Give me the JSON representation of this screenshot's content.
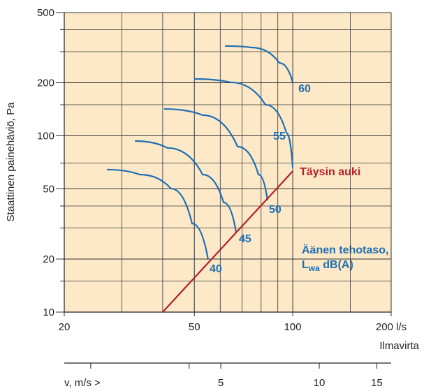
{
  "chart_data": {
    "type": "line",
    "log_x": true,
    "log_y": true,
    "grid": true,
    "y_label": "Staattinen painehäviö, Pa",
    "x_label": "Ilmavirta",
    "xlim": [
      20,
      200
    ],
    "xticks": [
      20,
      50,
      100,
      {
        "value": 200,
        "label": "200 l/s"
      }
    ],
    "x_minor_grid": [
      30,
      40,
      60,
      70,
      80,
      90,
      150
    ],
    "ylim": [
      10,
      500
    ],
    "yticks": [
      10,
      20,
      50,
      100,
      200,
      500
    ],
    "y_minor_grid": [
      15,
      30,
      40,
      70,
      150,
      300,
      400
    ],
    "series": [
      {
        "name": "40",
        "color": "#1f6fb5",
        "x": [
          27.0,
          34.0,
          42.4,
          49.2,
          55.1
        ],
        "values": [
          64.3,
          60.3,
          50.2,
          31.8,
          19.8
        ]
      },
      {
        "name": "45",
        "color": "#1f6fb5",
        "x": [
          32.9,
          41.4,
          53.0,
          61.4,
          67.1
        ],
        "values": [
          93.4,
          85.3,
          60.3,
          41.9,
          28.3
        ]
      },
      {
        "name": "50",
        "color": "#1f6fb5",
        "x": [
          40.4,
          53.0,
          67.8,
          78.5,
          83.7
        ],
        "values": [
          142,
          131,
          86.8,
          60.3,
          43.0
        ]
      },
      {
        "name": "55",
        "color": "#1f6fb5",
        "x": [
          49.9,
          64.5,
          82.5,
          95.6,
          100
        ],
        "values": [
          210,
          201,
          150,
          104,
          66.0
        ]
      },
      {
        "name": "60",
        "color": "#1f6fb5",
        "x": [
          62.0,
          74.8,
          91.0,
          100
        ],
        "values": [
          323,
          317,
          259,
          201
        ]
      },
      {
        "name": "Täysin auki",
        "color": "#b3202a",
        "x": [
          40,
          100
        ],
        "values": [
          10,
          63
        ]
      }
    ],
    "annotation": {
      "line1": "Äänen tehotaso,",
      "main": "L",
      "sub": "wa",
      "rest": " dB(A)"
    },
    "v_axis": {
      "label": "v, m/s >",
      "lim": [
        1.66,
        16.6
      ],
      "ticks": [
        5,
        10,
        15
      ],
      "minor_ticks": [
        2,
        4
      ]
    }
  }
}
